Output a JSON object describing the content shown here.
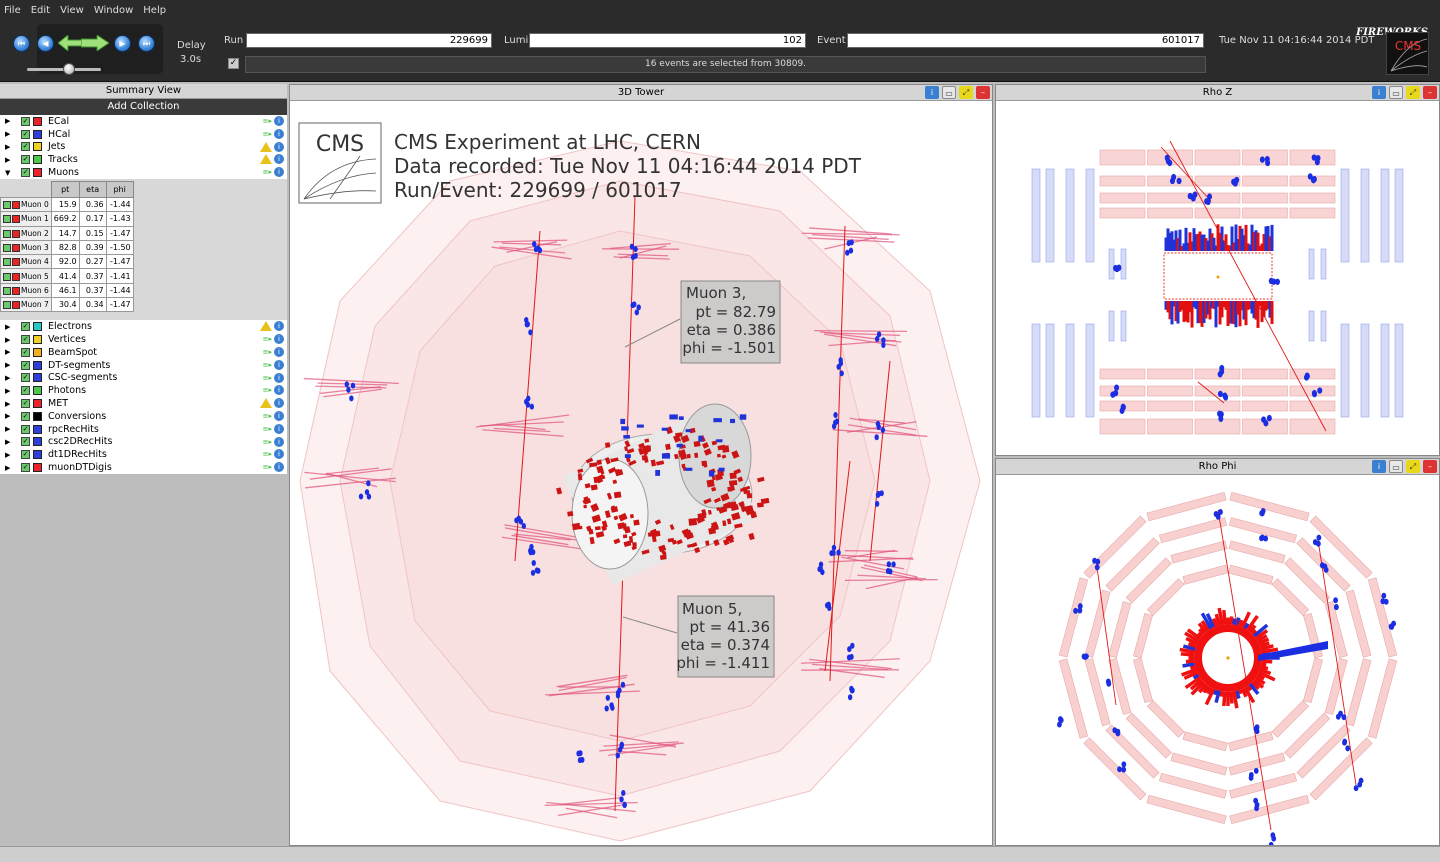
{
  "menu": [
    "File",
    "Edit",
    "View",
    "Window",
    "Help"
  ],
  "toolbar": {
    "delay_label": "Delay",
    "delay_value": "3.0s",
    "run_label": "Run",
    "run_value": "229699",
    "lumi_label": "Lumi",
    "lumi_value": "102",
    "event_label": "Event",
    "event_value": "601017",
    "datetime": "Tue Nov 11 04:16:44 2014 PDT",
    "status": "16 events are selected from 30809.",
    "brand": "FIREWORKS",
    "cms_logo_text": "CMS",
    "delay_slider_fraction": 0.2
  },
  "summary": {
    "title": "Summary View",
    "add_collection": "Add Collection",
    "collections_top": [
      {
        "name": "ECal",
        "color": "#e8242a",
        "icon": "filter-icon",
        "expanded": false
      },
      {
        "name": "HCal",
        "color": "#2f3fdc",
        "icon": "filter-icon",
        "expanded": false
      },
      {
        "name": "Jets",
        "color": "#f0d024",
        "icon": "warning-icon",
        "expanded": false
      },
      {
        "name": "Tracks",
        "color": "#4cc84c",
        "icon": "warning-icon",
        "expanded": false
      },
      {
        "name": "Muons",
        "color": "#e8242a",
        "icon": "filter-icon",
        "expanded": true
      }
    ],
    "muon_columns": [
      "pt",
      "eta",
      "phi"
    ],
    "muons": [
      {
        "label": "Muon 0",
        "pt": "15.9",
        "eta": "0.36",
        "phi": "-1.44"
      },
      {
        "label": "Muon 1",
        "pt": "669.2",
        "eta": "0.17",
        "phi": "-1.43"
      },
      {
        "label": "Muon 2",
        "pt": "14.7",
        "eta": "0.15",
        "phi": "-1.47"
      },
      {
        "label": "Muon 3",
        "pt": "82.8",
        "eta": "0.39",
        "phi": "-1.50"
      },
      {
        "label": "Muon 4",
        "pt": "92.0",
        "eta": "0.27",
        "phi": "-1.47"
      },
      {
        "label": "Muon 5",
        "pt": "41.4",
        "eta": "0.37",
        "phi": "-1.41"
      },
      {
        "label": "Muon 6",
        "pt": "46.1",
        "eta": "0.37",
        "phi": "-1.44"
      },
      {
        "label": "Muon 7",
        "pt": "30.4",
        "eta": "0.34",
        "phi": "-1.47"
      }
    ],
    "collections_bottom": [
      {
        "name": "Electrons",
        "color": "#27c8c8",
        "icon": "warning-icon"
      },
      {
        "name": "Vertices",
        "color": "#f0d024",
        "icon": "filter-icon"
      },
      {
        "name": "BeamSpot",
        "color": "#f0b020",
        "icon": "filter-icon"
      },
      {
        "name": "DT-segments",
        "color": "#2f3fdc",
        "icon": "filter-icon"
      },
      {
        "name": "CSC-segments",
        "color": "#2f3fdc",
        "icon": "filter-icon"
      },
      {
        "name": "Photons",
        "color": "#4cc84c",
        "icon": "filter-icon"
      },
      {
        "name": "MET",
        "color": "#e8242a",
        "icon": "warning-icon"
      },
      {
        "name": "Conversions",
        "color": "#000000",
        "icon": "filter-icon"
      },
      {
        "name": "rpcRecHits",
        "color": "#2f3fdc",
        "icon": "filter-icon"
      },
      {
        "name": "csc2DRecHits",
        "color": "#2f3fdc",
        "icon": "filter-icon"
      },
      {
        "name": "dt1DRecHits",
        "color": "#2f3fdc",
        "icon": "filter-icon"
      },
      {
        "name": "muonDTDigis",
        "color": "#e8242a",
        "icon": "filter-icon"
      }
    ]
  },
  "view3d": {
    "title": "3D Tower",
    "overlay_logo": "CMS",
    "overlay_line1": "CMS Experiment at LHC, CERN",
    "overlay_line2": "Data recorded: Tue Nov 11 04:16:44 2014 PDT",
    "overlay_line3": "Run/Event: 229699 / 601017",
    "label_muon3": [
      "Muon 3,",
      "pt = 82.79",
      "eta = 0.386",
      "phi = -1.501"
    ],
    "label_muon5": [
      "Muon 5,",
      "pt = 41.36",
      "eta = 0.374",
      "phi = -1.411"
    ]
  },
  "rhoz": {
    "title": "Rho Z"
  },
  "rhophi": {
    "title": "Rho Phi"
  },
  "colors": {
    "background_dark": "#2b2b2b",
    "panel_bg": "#bdbdbd",
    "ecal_red": "#e8242a",
    "muon_blue": "#2f3fdc",
    "chamber_pink": "#f7c9c9",
    "chamber_blue": "#c9d3f7"
  }
}
